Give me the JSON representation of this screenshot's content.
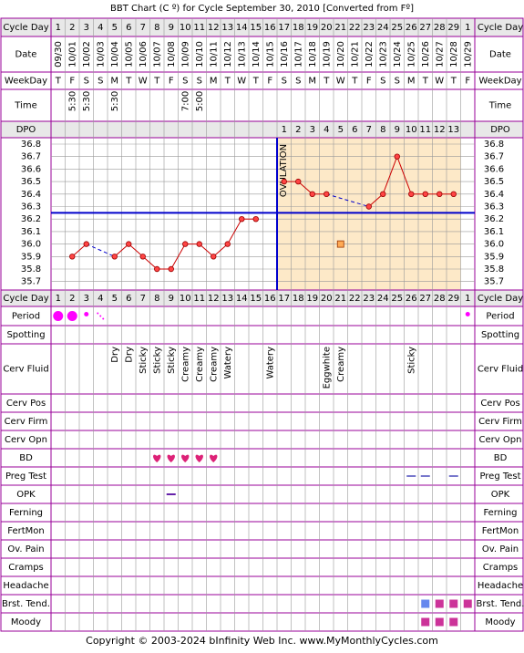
{
  "title": "BBT Chart (C º) for Cycle September 30, 2010  [Converted from Fº]",
  "footer": "Copyright © 2003-2024 bInfinity Web Inc.    www.MyMonthlyCycles.com",
  "labels": {
    "cycle_day": "Cycle Day",
    "date": "Date",
    "weekday": "WeekDay",
    "time": "Time",
    "dpo": "DPO",
    "ovulation": "OVULATION",
    "period": "Period",
    "spotting": "Spotting",
    "cerv_fluid": "Cerv Fluid",
    "cerv_pos": "Cerv Pos",
    "cerv_firm": "Cerv Firm",
    "cerv_opn": "Cerv Opn",
    "bd": "BD",
    "preg_test": "Preg Test",
    "opk": "OPK",
    "ferning": "Ferning",
    "fertmon": "FertMon",
    "ov_pain": "Ov. Pain",
    "cramps": "Cramps",
    "headache": "Headache",
    "brst_tend": "Brst. Tend.",
    "moody": "Moody"
  },
  "colors": {
    "border": "#990099",
    "grid": "#999999",
    "header_bg": "#e8e8e8",
    "post_ov_bg": "#fde9c8",
    "coverline": "#0000cc",
    "temp_line": "#cc0000",
    "temp_dot": "#ff4444",
    "period": "#ff00ff",
    "bd_heart": "#dd2277",
    "preg_test": "#7777cc",
    "opk": "#6622aa",
    "brst_blue": "#6688ee",
    "brst_pink": "#cc3399",
    "moody": "#cc3399"
  },
  "chart_data": {
    "type": "line",
    "cycle_days": [
      "1",
      "2",
      "3",
      "4",
      "5",
      "6",
      "7",
      "8",
      "9",
      "10",
      "11",
      "12",
      "13",
      "14",
      "15",
      "16",
      "17",
      "18",
      "19",
      "20",
      "21",
      "22",
      "23",
      "24",
      "25",
      "26",
      "27",
      "28",
      "29",
      "1"
    ],
    "dates": [
      "09/30",
      "10/01",
      "10/02",
      "10/03",
      "10/04",
      "10/05",
      "10/06",
      "10/07",
      "10/08",
      "10/09",
      "10/10",
      "10/11",
      "10/12",
      "10/13",
      "10/14",
      "10/15",
      "10/16",
      "10/17",
      "10/18",
      "10/19",
      "10/20",
      "10/21",
      "10/22",
      "10/23",
      "10/24",
      "10/25",
      "10/26",
      "10/27",
      "10/28",
      "10/29"
    ],
    "weekdays": [
      "T",
      "F",
      "S",
      "S",
      "M",
      "T",
      "W",
      "T",
      "F",
      "S",
      "S",
      "M",
      "T",
      "W",
      "T",
      "F",
      "S",
      "S",
      "M",
      "T",
      "W",
      "T",
      "F",
      "S",
      "S",
      "M",
      "T",
      "W",
      "T",
      "F"
    ],
    "times": [
      "",
      "5:30",
      "5:30",
      "",
      "5:30",
      "",
      "",
      "",
      "",
      "7:00",
      "5:00",
      "",
      "",
      "",
      "",
      "",
      "",
      "",
      "",
      "",
      "",
      "",
      "",
      "",
      "",
      "",
      "",
      "",
      "",
      ""
    ],
    "dpo": [
      "",
      "",
      "",
      "",
      "",
      "",
      "",
      "",
      "",
      "",
      "",
      "",
      "",
      "",
      "",
      "",
      "1",
      "2",
      "3",
      "4",
      "5",
      "6",
      "7",
      "8",
      "9",
      "10",
      "11",
      "12",
      "13",
      ""
    ],
    "y_ticks": [
      "36.8",
      "36.7",
      "36.6",
      "36.5",
      "36.4",
      "36.3",
      "36.2",
      "36.1",
      "36.0",
      "35.9",
      "35.8",
      "35.7"
    ],
    "ylim": [
      35.7,
      36.8
    ],
    "temps": [
      null,
      35.9,
      36.0,
      null,
      35.9,
      36.0,
      35.9,
      35.8,
      35.8,
      36.0,
      36.0,
      35.9,
      36.0,
      36.2,
      36.2,
      null,
      36.5,
      36.5,
      36.4,
      36.4,
      null,
      null,
      36.3,
      36.4,
      36.7,
      36.4,
      36.4,
      36.4,
      36.4,
      null
    ],
    "dashed_links": [
      [
        3,
        5
      ],
      [
        20,
        23
      ]
    ],
    "excluded_points": [
      {
        "day_index": 21,
        "value": 36.0
      }
    ],
    "coverline": 36.25,
    "ovulation_day_index": 16
  },
  "period": [
    "heavy",
    "heavy",
    "light",
    "spot",
    "",
    "",
    "",
    "",
    "",
    "",
    "",
    "",
    "",
    "",
    "",
    "",
    "",
    "",
    "",
    "",
    "",
    "",
    "",
    "",
    "",
    "",
    "",
    "",
    "",
    "light"
  ],
  "cerv_fluid": [
    "",
    "",
    "",
    "",
    "Dry",
    "Dry",
    "Sticky",
    "Sticky",
    "Sticky",
    "Creamy",
    "Creamy",
    "Creamy",
    "Watery",
    "",
    "",
    "Watery",
    "",
    "",
    "",
    "Eggwhite",
    "Creamy",
    "",
    "",
    "",
    "",
    "Sticky",
    "",
    "",
    "",
    ""
  ],
  "bd": [
    false,
    false,
    false,
    false,
    false,
    false,
    false,
    true,
    true,
    true,
    true,
    true,
    false,
    false,
    false,
    false,
    false,
    false,
    false,
    false,
    false,
    false,
    false,
    false,
    false,
    false,
    false,
    false,
    false,
    false
  ],
  "preg_test": [
    false,
    false,
    false,
    false,
    false,
    false,
    false,
    false,
    false,
    false,
    false,
    false,
    false,
    false,
    false,
    false,
    false,
    false,
    false,
    false,
    false,
    false,
    false,
    false,
    false,
    true,
    true,
    false,
    true,
    false
  ],
  "opk": [
    false,
    false,
    false,
    false,
    false,
    false,
    false,
    false,
    true,
    false,
    false,
    false,
    false,
    false,
    false,
    false,
    false,
    false,
    false,
    false,
    false,
    false,
    false,
    false,
    false,
    false,
    false,
    false,
    false,
    false
  ],
  "brst_tend": [
    "",
    "",
    "",
    "",
    "",
    "",
    "",
    "",
    "",
    "",
    "",
    "",
    "",
    "",
    "",
    "",
    "",
    "",
    "",
    "",
    "",
    "",
    "",
    "",
    "",
    "",
    "blue",
    "pink",
    "pink",
    "pink"
  ],
  "moody": [
    false,
    false,
    false,
    false,
    false,
    false,
    false,
    false,
    false,
    false,
    false,
    false,
    false,
    false,
    false,
    false,
    false,
    false,
    false,
    false,
    false,
    false,
    false,
    false,
    false,
    false,
    true,
    true,
    true,
    false
  ]
}
